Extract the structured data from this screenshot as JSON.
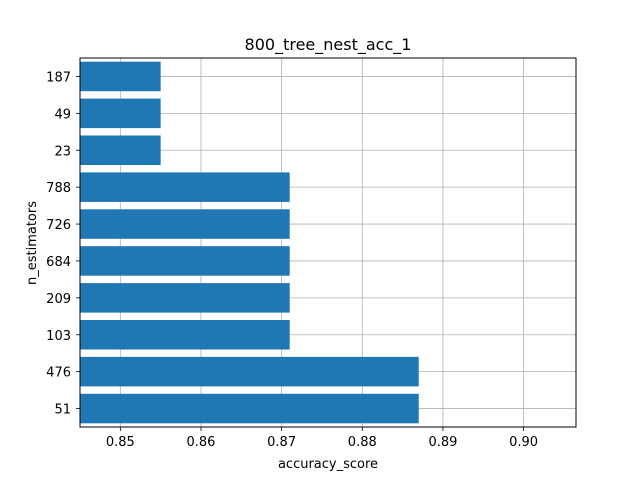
{
  "chart_data": {
    "type": "bar",
    "orientation": "horizontal",
    "title": "800_tree_nest_acc_1",
    "xlabel": "accuracy_score",
    "ylabel": "n_estimators",
    "categories": [
      "51",
      "476",
      "103",
      "209",
      "684",
      "726",
      "788",
      "23",
      "49",
      "187"
    ],
    "values": [
      0.887,
      0.887,
      0.871,
      0.871,
      0.871,
      0.871,
      0.871,
      0.855,
      0.855,
      0.855
    ],
    "xlim": [
      0.845,
      0.9065
    ],
    "xticks": [
      "0.85",
      "0.86",
      "0.87",
      "0.88",
      "0.89",
      "0.90"
    ],
    "grid": true,
    "bar_color": "#1f77b4"
  }
}
